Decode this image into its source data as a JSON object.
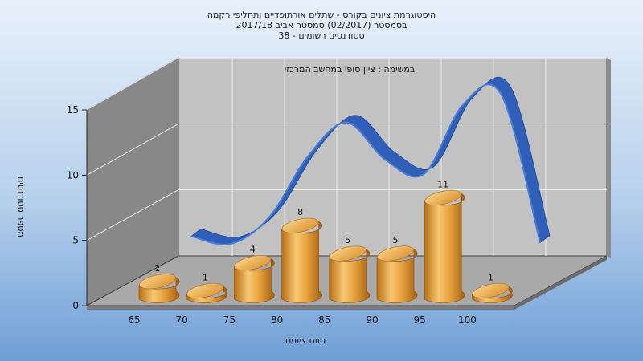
{
  "chart_data": {
    "type": "bar",
    "title_lines": [
      "היסטוגרמת ציונים בקורס - שתלים אורתופדיים ותחליפי רקמה",
      "בסמסטר  (02/2017)  סמסטר אביב 2017/18",
      "סטודנטים רשומים - 38"
    ],
    "subtitle": "במשימה : ציון סופי במחשב המרכזי",
    "xlabel": "טווח ציונים",
    "ylabel": "מספר סטודנטים",
    "categories": [
      "65",
      "70",
      "75",
      "80",
      "85",
      "90",
      "95",
      "100"
    ],
    "values": [
      2,
      1,
      4,
      8,
      5,
      5,
      11,
      1
    ],
    "data_labels": [
      "2",
      "1",
      "4",
      "8",
      "5",
      "5",
      "11",
      "1"
    ],
    "curve_values": [
      1.8,
      1.2,
      3.2,
      7.8,
      10.4,
      7.6,
      6.5,
      11.7,
      12.5,
      1.3
    ],
    "y_ticks": [
      "0",
      "5",
      "10",
      "15"
    ],
    "ylim": [
      0,
      15
    ],
    "grid": true,
    "colors": {
      "background_top": "#e6f0fb",
      "background_bottom": "#6f9fd6",
      "back_wall": "#c2c2c2",
      "side_wall": "#888888",
      "floor": "#a9a9a9",
      "bar": "#e9a441",
      "curve": "#3a6cc4"
    }
  }
}
